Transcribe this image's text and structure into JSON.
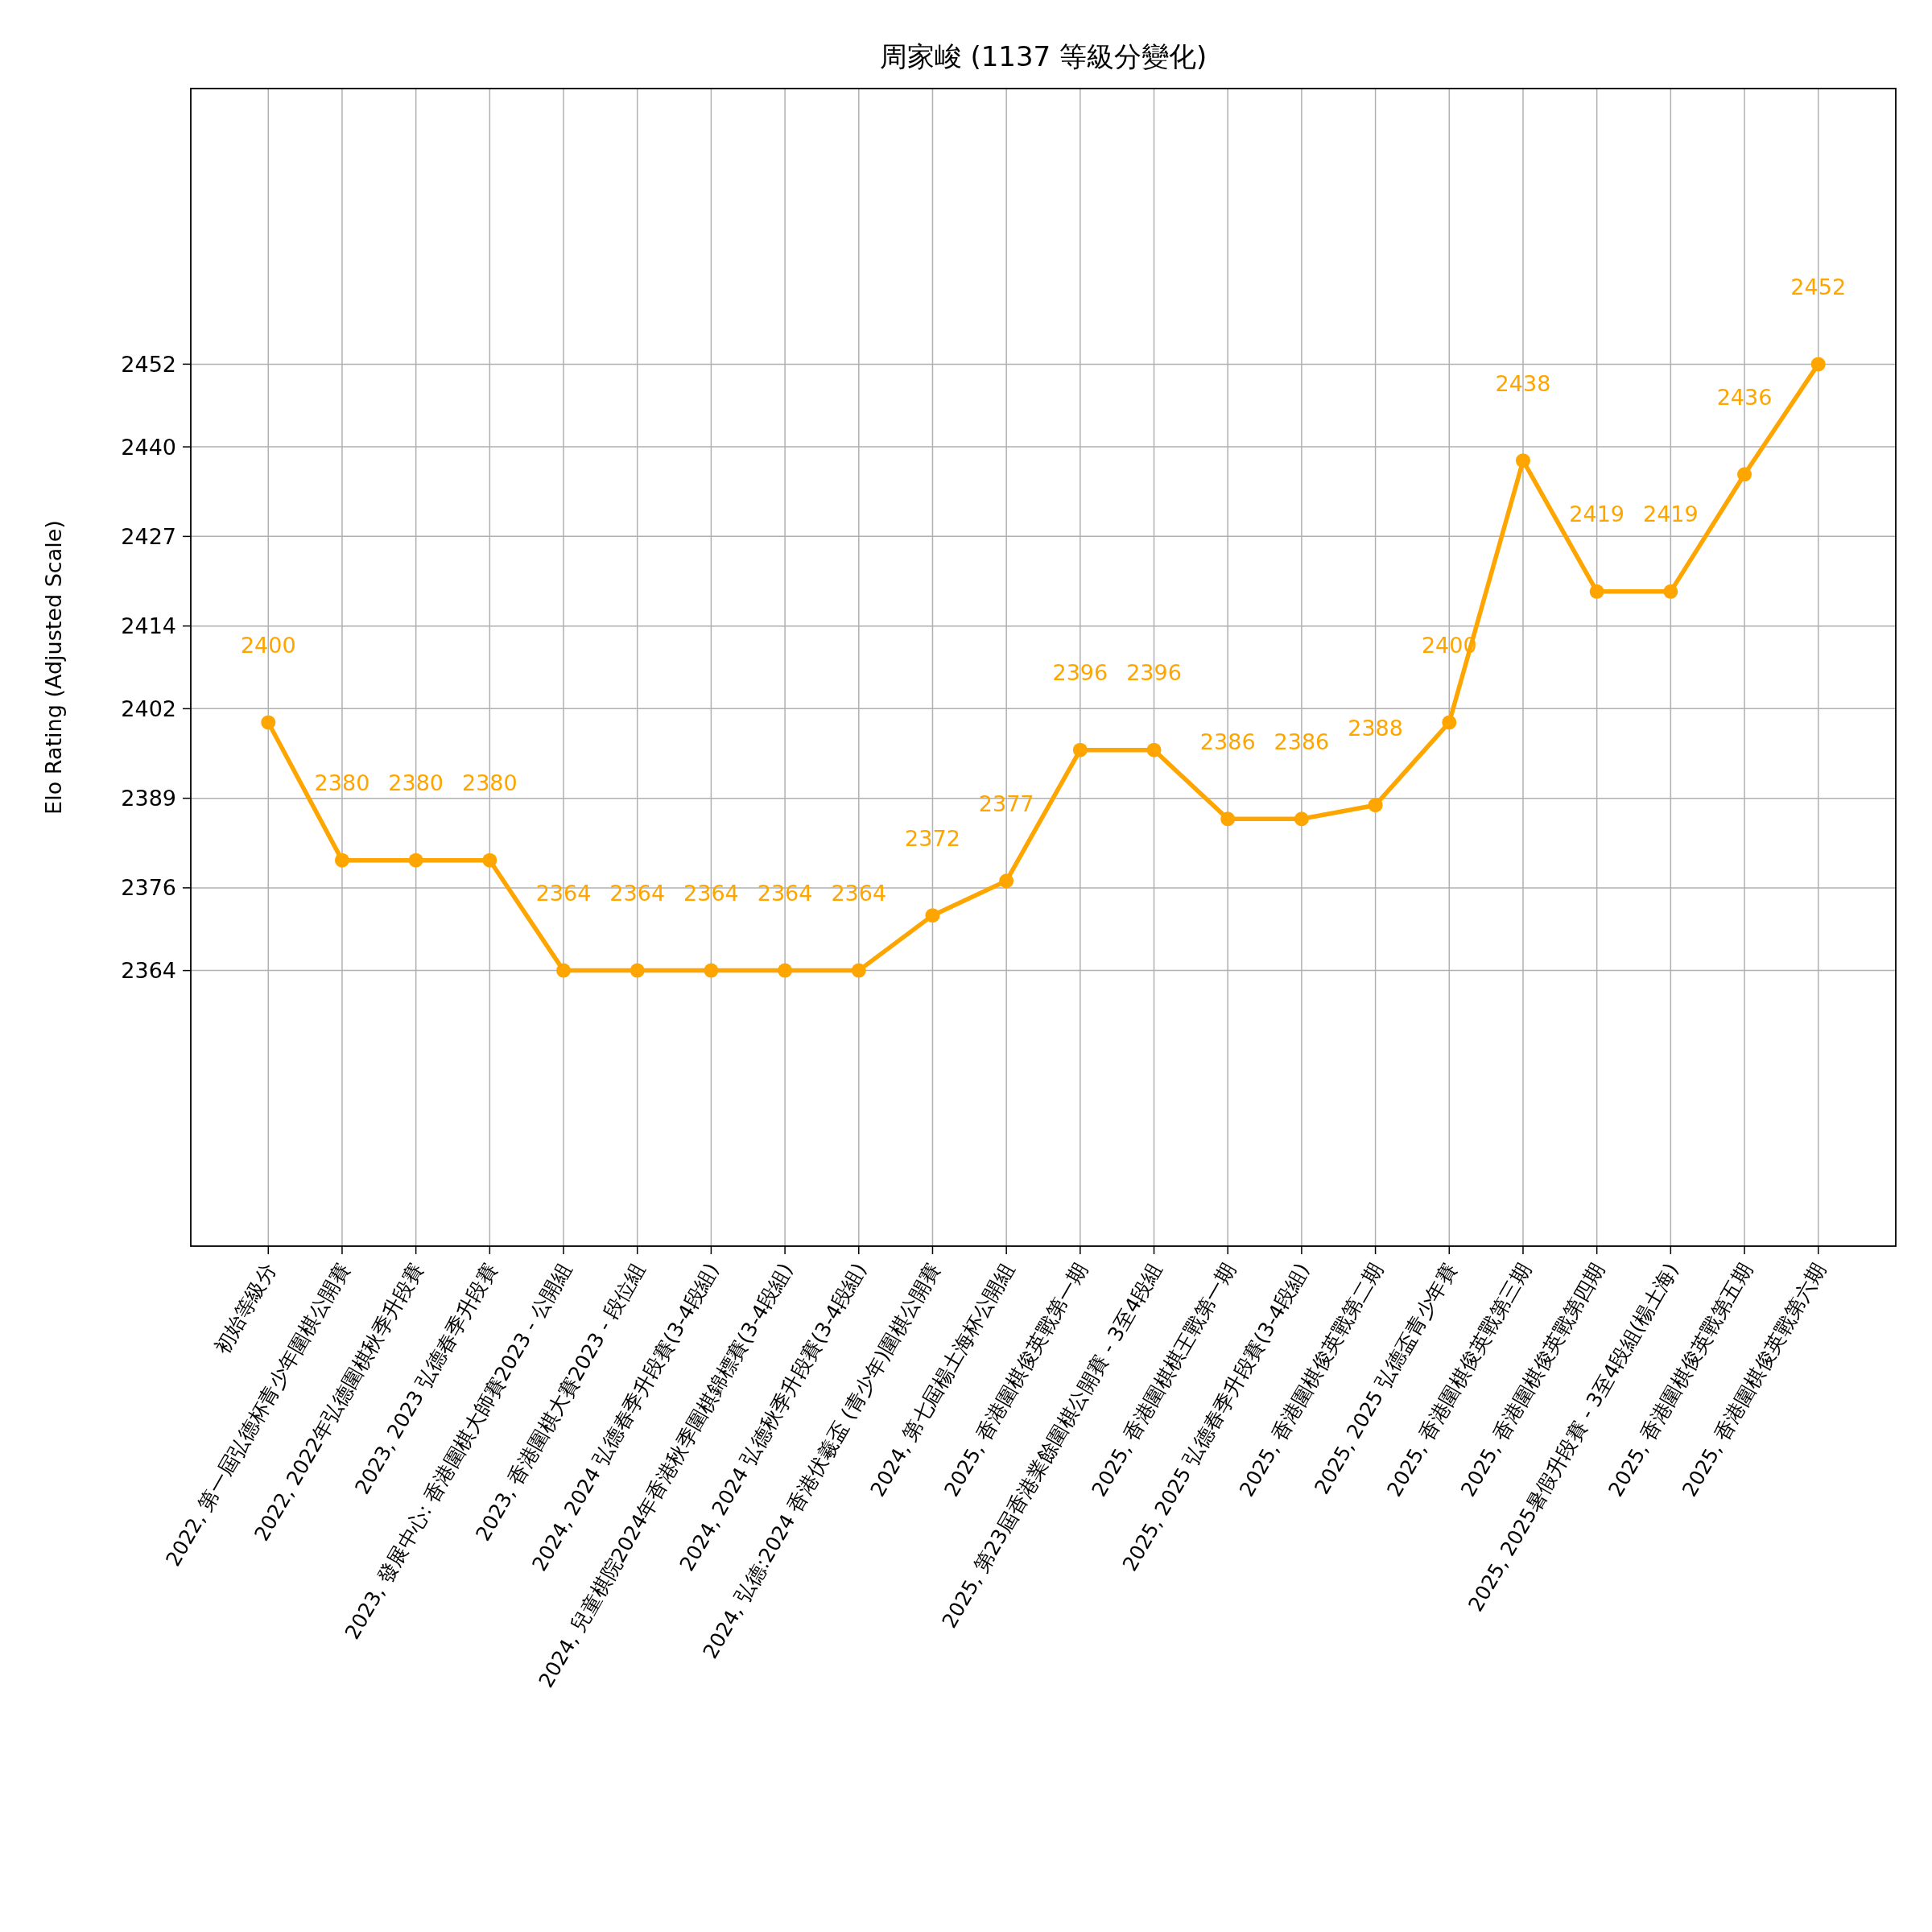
{
  "chart_data": {
    "type": "line",
    "title": "周家峻 (1137 等級分變化)",
    "ylabel": "Elo Rating (Adjusted Scale)",
    "categories": [
      "初始等級分",
      "2022, 第一屆弘德杯青少年圍棋公開賽",
      "2022, 2022年弘德圍棋秋季升段賽",
      "2023, 2023 弘德春季升段賽",
      "2023, 發展中心: 香港圍棋大師賽2023 - 公開組",
      "2023, 香港圍棋大賽2023 - 段位組",
      "2024, 2024 弘德春季升段賽(3-4段組)",
      "2024, 兒童棋院2024年香港秋季圍棋錦標賽(3-4段組)",
      "2024, 2024 弘德秋季升段賽(3-4段組)",
      "2024, 弘德:2024 香港伏羲盃 (青少年)圍棋公開賽",
      "2024, 第七屆楊土海杯公開組",
      "2025, 香港圍棋俊英戰第一期",
      "2025, 第23屆香港業餘圍棋公開賽 - 3至4段組",
      "2025, 香港圍棋棋王戰第一期",
      "2025, 2025 弘德春季升段賽(3-4段組)",
      "2025, 香港圍棋俊英戰第二期",
      "2025, 2025 弘德盃青少年賽",
      "2025, 香港圍棋俊英戰第三期",
      "2025, 香港圍棋俊英戰第四期",
      "2025, 2025暑假升段賽 - 3至4段組(楊土海)",
      "2025, 香港圍棋俊英戰第五期",
      "2025, 香港圍棋俊英戰第六期"
    ],
    "values": [
      2400,
      2380,
      2380,
      2380,
      2364,
      2364,
      2364,
      2364,
      2364,
      2372,
      2377,
      2396,
      2396,
      2386,
      2386,
      2388,
      2400,
      2438,
      2419,
      2419,
      2436,
      2452
    ],
    "color": "#ffa500",
    "marker": "circle",
    "data_labels": true,
    "grid": true,
    "ylim": [
      2324,
      2492
    ],
    "yticks": [
      2364,
      2376,
      2389,
      2402,
      2414,
      2427,
      2440,
      2452
    ]
  }
}
